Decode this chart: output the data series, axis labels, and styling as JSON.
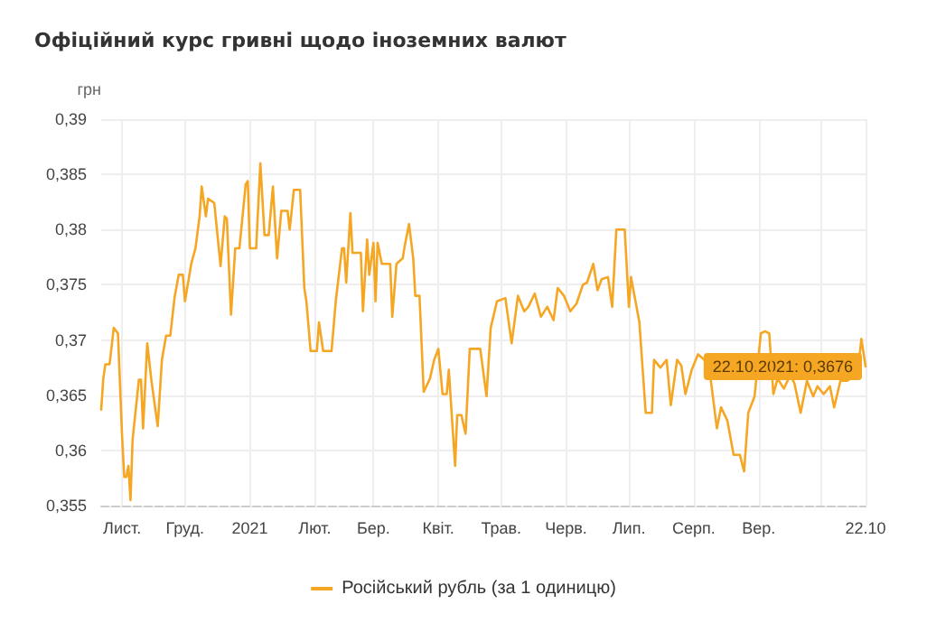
{
  "chart_data": {
    "type": "line",
    "title": "Офіційний курс гривні щодо іноземних валют",
    "ylabel": "грн",
    "x": [
      "2020-10-22",
      "2020-10-23",
      "2020-10-24",
      "2020-10-26",
      "2020-10-28",
      "2020-10-30",
      "2020-11-01",
      "2020-11-02",
      "2020-11-03",
      "2020-11-04",
      "2020-11-05",
      "2020-11-06",
      "2020-11-09",
      "2020-11-10",
      "2020-11-11",
      "2020-11-13",
      "2020-11-15",
      "2020-11-16",
      "2020-11-18",
      "2020-11-20",
      "2020-11-22",
      "2020-11-24",
      "2020-11-26",
      "2020-11-28",
      "2020-11-30",
      "2020-12-01",
      "2020-12-04",
      "2020-12-06",
      "2020-12-08",
      "2020-12-09",
      "2020-12-11",
      "2020-12-12",
      "2020-12-15",
      "2020-12-18",
      "2020-12-20",
      "2020-12-21",
      "2020-12-23",
      "2020-12-25",
      "2020-12-27",
      "2020-12-30",
      "2020-12-31",
      "2021-01-01",
      "2021-01-04",
      "2021-01-06",
      "2021-01-08",
      "2021-01-10",
      "2021-01-12",
      "2021-01-14",
      "2021-01-16",
      "2021-01-19",
      "2021-01-20",
      "2021-01-22",
      "2021-01-25",
      "2021-01-27",
      "2021-01-28",
      "2021-01-30",
      "2021-02-02",
      "2021-02-03",
      "2021-02-05",
      "2021-02-09",
      "2021-02-11",
      "2021-02-14",
      "2021-02-15",
      "2021-02-16",
      "2021-02-18",
      "2021-02-19",
      "2021-02-23",
      "2021-02-24",
      "2021-02-26",
      "2021-02-27",
      "2021-03-01",
      "2021-03-02",
      "2021-03-03",
      "2021-03-05",
      "2021-03-09",
      "2021-03-10",
      "2021-03-12",
      "2021-03-15",
      "2021-03-16",
      "2021-03-18",
      "2021-03-20",
      "2021-03-21",
      "2021-03-23",
      "2021-03-25",
      "2021-03-28",
      "2021-03-30",
      "2021-04-01",
      "2021-04-03",
      "2021-04-05",
      "2021-04-06",
      "2021-04-09",
      "2021-04-10",
      "2021-04-12",
      "2021-04-14",
      "2021-04-16",
      "2021-04-21",
      "2021-04-24",
      "2021-04-26",
      "2021-04-29",
      "2021-05-03",
      "2021-05-06",
      "2021-05-09",
      "2021-05-12",
      "2021-05-14",
      "2021-05-17",
      "2021-05-20",
      "2021-05-23",
      "2021-05-26",
      "2021-05-28",
      "2021-05-31",
      "2021-06-03",
      "2021-06-06",
      "2021-06-09",
      "2021-06-11",
      "2021-06-14",
      "2021-06-16",
      "2021-06-18",
      "2021-06-21",
      "2021-06-23",
      "2021-06-25",
      "2021-06-29",
      "2021-07-01",
      "2021-07-02",
      "2021-07-06",
      "2021-07-09",
      "2021-07-12",
      "2021-07-13",
      "2021-07-16",
      "2021-07-19",
      "2021-07-21",
      "2021-07-24",
      "2021-07-26",
      "2021-07-28",
      "2021-07-31",
      "2021-08-03",
      "2021-08-06",
      "2021-08-09",
      "2021-08-12",
      "2021-08-14",
      "2021-08-17",
      "2021-08-20",
      "2021-08-23",
      "2021-08-25",
      "2021-08-27",
      "2021-08-30",
      "2021-09-02",
      "2021-09-04",
      "2021-09-06",
      "2021-09-08",
      "2021-09-10",
      "2021-09-13",
      "2021-09-16",
      "2021-09-18",
      "2021-09-21",
      "2021-09-24",
      "2021-09-27",
      "2021-09-29",
      "2021-10-02",
      "2021-10-05",
      "2021-10-07",
      "2021-10-10",
      "2021-10-13",
      "2021-10-15",
      "2021-10-18",
      "2021-10-20",
      "2021-10-22"
    ],
    "series": [
      {
        "name": "Російський рубль (за 1 одиницю)",
        "color": "#f5a623",
        "values": [
          0.3637,
          0.3665,
          0.3678,
          0.3678,
          0.3711,
          0.3706,
          0.3612,
          0.3576,
          0.3576,
          0.3586,
          0.3555,
          0.361,
          0.3664,
          0.3664,
          0.362,
          0.3697,
          0.3663,
          0.3649,
          0.3622,
          0.3682,
          0.3704,
          0.3704,
          0.3738,
          0.3759,
          0.3759,
          0.3735,
          0.3769,
          0.3783,
          0.3812,
          0.3839,
          0.3812,
          0.3828,
          0.3824,
          0.3767,
          0.3812,
          0.381,
          0.3723,
          0.3783,
          0.3783,
          0.3841,
          0.3844,
          0.3783,
          0.3783,
          0.386,
          0.3795,
          0.3795,
          0.3839,
          0.3774,
          0.3817,
          0.3817,
          0.38,
          0.3836,
          0.3836,
          0.3747,
          0.3735,
          0.369,
          0.369,
          0.3716,
          0.369,
          0.369,
          0.3735,
          0.3783,
          0.3783,
          0.3752,
          0.3815,
          0.3779,
          0.3779,
          0.3726,
          0.3791,
          0.3759,
          0.3788,
          0.3735,
          0.3788,
          0.3769,
          0.3769,
          0.3721,
          0.3769,
          0.3774,
          0.3786,
          0.3805,
          0.3774,
          0.374,
          0.374,
          0.3653,
          0.3665,
          0.3682,
          0.3692,
          0.3651,
          0.3651,
          0.3673,
          0.3586,
          0.3632,
          0.3632,
          0.3615,
          0.3692,
          0.3692,
          0.3649,
          0.3711,
          0.3735,
          0.3738,
          0.3697,
          0.374,
          0.3726,
          0.373,
          0.3742,
          0.3721,
          0.373,
          0.3718,
          0.3747,
          0.374,
          0.3726,
          0.3733,
          0.375,
          0.3752,
          0.3769,
          0.3745,
          0.3755,
          0.3757,
          0.373,
          0.38,
          0.38,
          0.373,
          0.3757,
          0.3716,
          0.3634,
          0.3634,
          0.3682,
          0.3675,
          0.3682,
          0.3641,
          0.3682,
          0.3677,
          0.3651,
          0.3673,
          0.3687,
          0.3682,
          0.3665,
          0.362,
          0.3639,
          0.3627,
          0.3596,
          0.3596,
          0.3581,
          0.3634,
          0.3649,
          0.3706,
          0.3708,
          0.3706,
          0.3651,
          0.3665,
          0.3656,
          0.3668,
          0.3661,
          0.3634,
          0.3663,
          0.3649,
          0.3658,
          0.3651,
          0.3658,
          0.3639,
          0.3663,
          0.3663,
          0.3665,
          0.3665,
          0.3701,
          0.3676
        ]
      }
    ],
    "xlim": [
      "2020-10-22",
      "2021-10-22"
    ],
    "xticks": [
      {
        "value": "2020-11-01",
        "label": "Лист."
      },
      {
        "value": "2020-12-01",
        "label": "Груд."
      },
      {
        "value": "2021-01-01",
        "label": "2021"
      },
      {
        "value": "2021-02-01",
        "label": "Лют."
      },
      {
        "value": "2021-03-01",
        "label": "Бер."
      },
      {
        "value": "2021-04-01",
        "label": "Квіт."
      },
      {
        "value": "2021-05-01",
        "label": "Трав."
      },
      {
        "value": "2021-06-01",
        "label": "Черв."
      },
      {
        "value": "2021-07-01",
        "label": "Лип."
      },
      {
        "value": "2021-08-01",
        "label": "Серп."
      },
      {
        "value": "2021-09-01",
        "label": "Вер."
      },
      {
        "value": "2021-10-01",
        "label": null
      },
      {
        "value": "2021-10-22",
        "label": "22.10"
      }
    ],
    "ylim": [
      0.355,
      0.39
    ],
    "yticks": [
      {
        "value": 0.355,
        "label": "0,355"
      },
      {
        "value": 0.36,
        "label": "0,36"
      },
      {
        "value": 0.365,
        "label": "0,365"
      },
      {
        "value": 0.37,
        "label": "0,37"
      },
      {
        "value": 0.375,
        "label": "0,375"
      },
      {
        "value": 0.38,
        "label": "0,38"
      },
      {
        "value": 0.385,
        "label": "0,385"
      },
      {
        "value": 0.39,
        "label": "0,39"
      }
    ],
    "annotations": [
      {
        "text": "22.10.2021: 0,3676",
        "x": "2021-10-22",
        "y": 0.3676
      }
    ],
    "grid": true,
    "legend": "bottom",
    "marker": "none",
    "line_style": "solid"
  }
}
